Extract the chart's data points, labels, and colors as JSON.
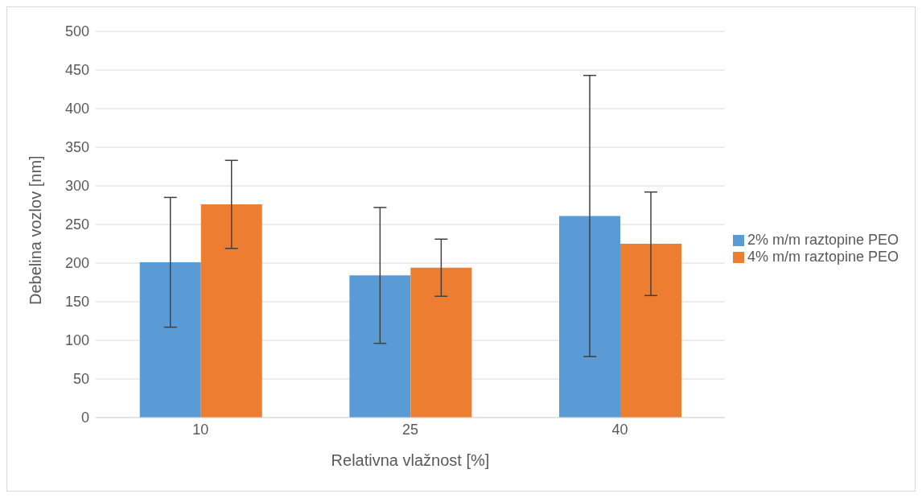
{
  "chart_data": {
    "type": "bar",
    "xlabel": "Relativna vlažnost [%]",
    "ylabel": "Debelina vozlov [nm]",
    "categories": [
      "10",
      "25",
      "40"
    ],
    "series": [
      {
        "name": "2% m/m raztopine PEO",
        "color": "#5b9bd5",
        "values": [
          201,
          184,
          261
        ],
        "errors": [
          84,
          88,
          182
        ]
      },
      {
        "name": "4% m/m raztopine PEO",
        "color": "#ed7d31",
        "values": [
          276,
          194,
          225
        ],
        "errors": [
          57,
          37,
          67
        ]
      }
    ],
    "ylim": [
      0,
      500
    ],
    "yticks": [
      0,
      50,
      100,
      150,
      200,
      250,
      300,
      350,
      400,
      450,
      500
    ],
    "grid": "y",
    "legend": "right"
  }
}
